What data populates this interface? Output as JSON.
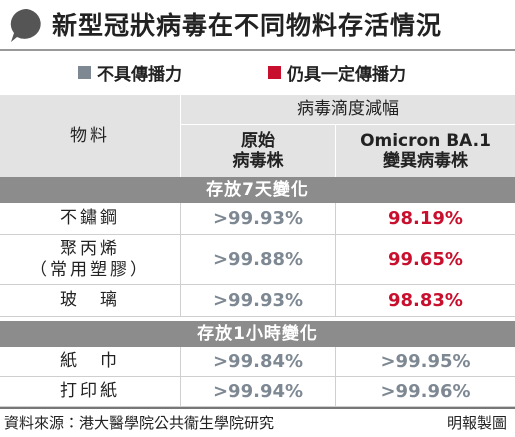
{
  "header": {
    "title": "新型冠狀病毒在不同物料存活情況"
  },
  "legend": [
    {
      "label": "不具傳播力",
      "color": "#7d8892"
    },
    {
      "label": "仍具一定傳播力",
      "color": "#c8102e"
    }
  ],
  "table": {
    "group_header": "病毒滴度減幅",
    "columns": [
      "物料",
      "原始\n病毒株",
      "Omicron BA.1\n變異病毒株"
    ],
    "sections": [
      {
        "title": "存放7天變化",
        "rows": [
          {
            "material": "不鏽鋼",
            "values": [
              ">99.93%",
              "98.19%"
            ],
            "colors": [
              "#7d8892",
              "#c8102e"
            ]
          },
          {
            "material": "聚丙烯\n（常用塑膠）",
            "values": [
              ">99.88%",
              "99.65%"
            ],
            "colors": [
              "#7d8892",
              "#c8102e"
            ]
          },
          {
            "material": "玻　璃",
            "values": [
              ">99.93%",
              "98.83%"
            ],
            "colors": [
              "#7d8892",
              "#c8102e"
            ]
          }
        ]
      },
      {
        "title": "存放1小時變化",
        "rows": [
          {
            "material": "紙　巾",
            "values": [
              ">99.84%",
              ">99.95%"
            ],
            "colors": [
              "#7d8892",
              "#7d8892"
            ]
          },
          {
            "material": "打印紙",
            "values": [
              ">99.94%",
              ">99.96%"
            ],
            "colors": [
              "#7d8892",
              "#7d8892"
            ]
          }
        ]
      }
    ]
  },
  "footer": {
    "source": "資料來源：港大醫學院公共衞生學院研究",
    "credit": "明報製圖"
  }
}
